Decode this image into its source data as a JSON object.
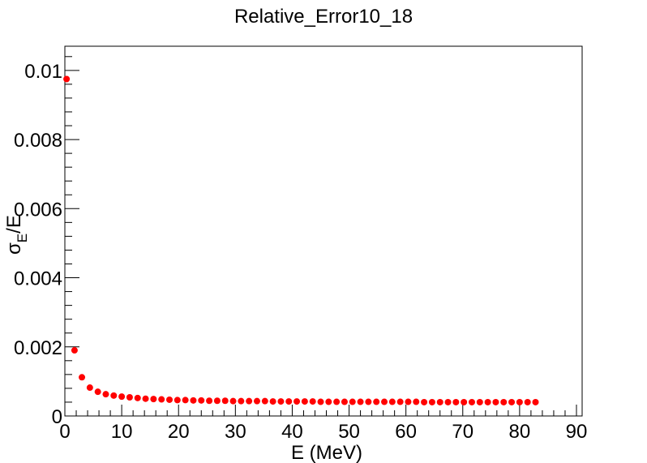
{
  "chart_data": {
    "type": "scatter",
    "title": "Relative_Error10_18",
    "xlabel": "E (MeV)",
    "ylabel_parts": {
      "sigma": "σ",
      "sub1": "E",
      "slash": "/",
      "e": "E"
    },
    "xlim": [
      0,
      91
    ],
    "ylim": [
      0,
      0.0107
    ],
    "xticks": [
      0,
      10,
      20,
      30,
      40,
      50,
      60,
      70,
      80,
      90
    ],
    "xtick_labels": [
      "0",
      "10",
      "20",
      "30",
      "40",
      "50",
      "60",
      "70",
      "80",
      "90"
    ],
    "yticks": [
      0,
      0.002,
      0.004,
      0.006,
      0.008,
      0.01
    ],
    "ytick_labels": [
      "0",
      "0.002",
      "0.004",
      "0.006",
      "0.008",
      "0.01"
    ],
    "grid": false,
    "series": [
      {
        "marker_color": "#ff0000",
        "x": [
          0.3,
          1.7,
          3.0,
          4.4,
          5.8,
          7.2,
          8.6,
          10.0,
          11.4,
          12.8,
          14.2,
          15.6,
          17.0,
          18.4,
          19.8,
          21.2,
          22.6,
          24.0,
          25.4,
          26.8,
          28.2,
          29.6,
          31.0,
          32.4,
          33.8,
          35.2,
          36.6,
          38.0,
          39.4,
          40.8,
          42.2,
          43.6,
          45.0,
          46.4,
          47.8,
          49.2,
          50.6,
          52.0,
          53.4,
          54.8,
          56.2,
          57.6,
          59.0,
          60.4,
          61.8,
          63.2,
          64.6,
          66.0,
          67.4,
          68.8,
          70.2,
          71.6,
          73.0,
          74.4,
          75.8,
          77.2,
          78.6,
          80.0,
          81.4,
          82.8
        ],
        "y": [
          0.00975,
          0.0019,
          0.00112,
          0.00082,
          0.0007,
          0.00063,
          0.00059,
          0.00056,
          0.00054,
          0.00052,
          0.0005,
          0.00049,
          0.00048,
          0.00047,
          0.00046,
          0.00046,
          0.00045,
          0.00045,
          0.00044,
          0.00044,
          0.00044,
          0.00043,
          0.00043,
          0.00043,
          0.00043,
          0.00043,
          0.00042,
          0.00042,
          0.00042,
          0.00042,
          0.00042,
          0.00042,
          0.00041,
          0.00041,
          0.00041,
          0.00041,
          0.00041,
          0.00041,
          0.00041,
          0.00041,
          0.00041,
          0.00041,
          0.00041,
          0.00041,
          0.00041,
          0.0004,
          0.0004,
          0.0004,
          0.0004,
          0.0004,
          0.0004,
          0.0004,
          0.0004,
          0.0004,
          0.0004,
          0.0004,
          0.0004,
          0.0004,
          0.0004,
          0.0004
        ]
      }
    ]
  }
}
